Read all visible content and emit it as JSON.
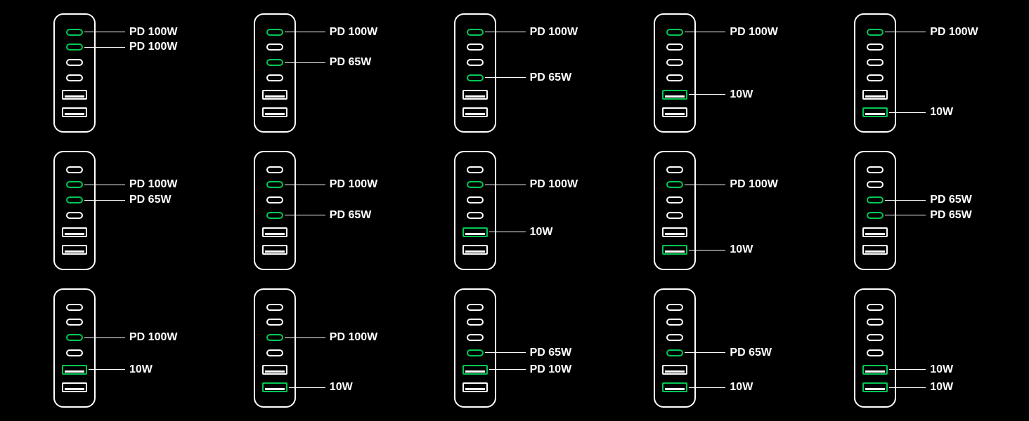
{
  "colors": {
    "background": "#000000",
    "outline": "#ffffff",
    "active": "#00c853",
    "text": "#ffffff"
  },
  "typography": {
    "label_fontsize": 16,
    "label_fontweight": 600,
    "font_family": "Arial"
  },
  "charger_layout": {
    "port_count": 6,
    "ports": [
      "usb-c",
      "usb-c",
      "usb-c",
      "usb-c",
      "usb-a",
      "usb-a"
    ],
    "body_width": 60,
    "body_height": 170,
    "body_radius": 14,
    "border_width": 2
  },
  "grid": {
    "rows": 3,
    "cols": 5
  },
  "chargers": [
    {
      "active": [
        {
          "idx": 0,
          "label": "PD 100W"
        },
        {
          "idx": 1,
          "label": "PD 100W"
        }
      ]
    },
    {
      "active": [
        {
          "idx": 0,
          "label": "PD 100W"
        },
        {
          "idx": 2,
          "label": "PD 65W"
        }
      ]
    },
    {
      "active": [
        {
          "idx": 0,
          "label": "PD 100W"
        },
        {
          "idx": 3,
          "label": "PD 65W"
        }
      ]
    },
    {
      "active": [
        {
          "idx": 0,
          "label": "PD 100W"
        },
        {
          "idx": 4,
          "label": "10W"
        }
      ]
    },
    {
      "active": [
        {
          "idx": 0,
          "label": "PD 100W"
        },
        {
          "idx": 5,
          "label": "10W"
        }
      ]
    },
    {
      "active": [
        {
          "idx": 1,
          "label": "PD 100W"
        },
        {
          "idx": 2,
          "label": "PD 65W"
        }
      ]
    },
    {
      "active": [
        {
          "idx": 1,
          "label": "PD 100W"
        },
        {
          "idx": 3,
          "label": "PD 65W"
        }
      ]
    },
    {
      "active": [
        {
          "idx": 1,
          "label": "PD 100W"
        },
        {
          "idx": 4,
          "label": "10W"
        }
      ]
    },
    {
      "active": [
        {
          "idx": 1,
          "label": "PD 100W"
        },
        {
          "idx": 5,
          "label": "10W"
        }
      ]
    },
    {
      "active": [
        {
          "idx": 2,
          "label": "PD 65W"
        },
        {
          "idx": 3,
          "label": "PD 65W"
        }
      ]
    },
    {
      "active": [
        {
          "idx": 2,
          "label": "PD 100W"
        },
        {
          "idx": 4,
          "label": "10W"
        }
      ]
    },
    {
      "active": [
        {
          "idx": 2,
          "label": "PD 100W"
        },
        {
          "idx": 5,
          "label": "10W"
        }
      ]
    },
    {
      "active": [
        {
          "idx": 3,
          "label": "PD 65W"
        },
        {
          "idx": 4,
          "label": "PD 10W"
        }
      ]
    },
    {
      "active": [
        {
          "idx": 3,
          "label": "PD 65W"
        },
        {
          "idx": 5,
          "label": "10W"
        }
      ]
    },
    {
      "active": [
        {
          "idx": 4,
          "label": "10W"
        },
        {
          "idx": 5,
          "label": "10W"
        }
      ]
    }
  ]
}
